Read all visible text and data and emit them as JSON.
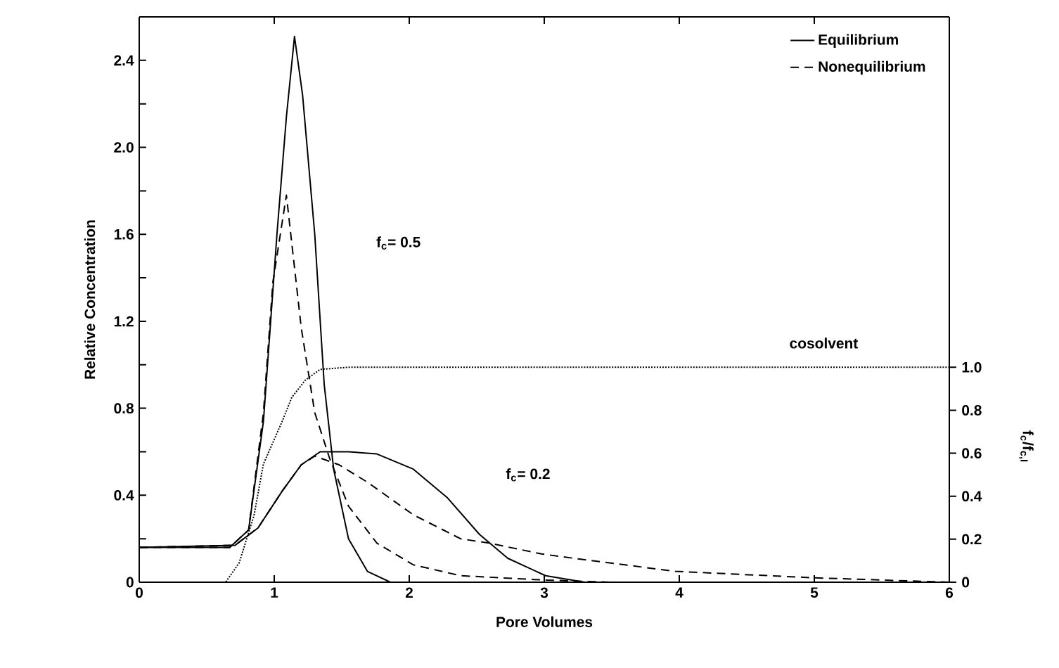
{
  "chart_data": {
    "type": "line",
    "xlabel": "Pore Volumes",
    "ylabel": "Relative Concentration",
    "y2label": "f$_{c}$/f$_{c,I}$",
    "xlim": [
      0,
      6
    ],
    "ylim": [
      0,
      2.6
    ],
    "y2lim": [
      0,
      2.63
    ],
    "xticks": [
      0,
      1,
      2,
      3,
      4,
      5,
      6
    ],
    "yticks": [
      0,
      {
        "value": 0.2,
        "label": null
      },
      0.4,
      {
        "value": 0.6,
        "label": null
      },
      0.8,
      {
        "value": 1.0,
        "label": null
      },
      1.2,
      {
        "value": 1.4,
        "label": null
      },
      1.6,
      {
        "value": 1.8,
        "label": null
      },
      {
        "value": 2.0,
        "label": "2.0"
      },
      {
        "value": 2.2,
        "label": null
      },
      2.4
    ],
    "y2ticks": [
      0,
      0.2,
      0.4,
      0.6,
      0.8,
      {
        "value": 1.0,
        "label": "1.0"
      }
    ],
    "legend": "top right",
    "marker": "none",
    "grid": false,
    "series": [
      {
        "name": "Equilibrium",
        "color": "#000000",
        "line_style": "solid",
        "x": [
          0,
          0.67,
          0.81,
          0.92,
          1.02,
          1.09,
          1.15,
          1.21,
          1.3,
          1.37,
          1.44,
          1.55,
          1.69,
          1.86,
          2.2,
          6
        ],
        "values": [
          0.16,
          0.16,
          0.24,
          0.74,
          1.6,
          2.14,
          2.51,
          2.24,
          1.6,
          0.91,
          0.52,
          0.2,
          0.05,
          0.0,
          0,
          0
        ]
      },
      {
        "name": "Nonequilibrium",
        "color": "#000000",
        "line_style": "dashed",
        "x": [
          0,
          0.67,
          0.81,
          0.92,
          0.99,
          1.09,
          1.2,
          1.3,
          1.41,
          1.55,
          1.76,
          2.03,
          2.38,
          3.0,
          3.5,
          6
        ],
        "values": [
          0.16,
          0.16,
          0.24,
          0.78,
          1.38,
          1.78,
          1.17,
          0.78,
          0.57,
          0.35,
          0.18,
          0.08,
          0.03,
          0.01,
          0,
          0
        ]
      },
      {
        "color": "#000000",
        "line_style": "solid",
        "x": [
          0,
          0.71,
          0.88,
          1.06,
          1.2,
          1.34,
          1.55,
          1.76,
          2.03,
          2.28,
          2.52,
          2.73,
          3.01,
          3.3,
          6
        ],
        "values": [
          0.16,
          0.17,
          0.25,
          0.42,
          0.54,
          0.6,
          0.6,
          0.59,
          0.52,
          0.39,
          0.22,
          0.11,
          0.03,
          0.0,
          0
        ]
      },
      {
        "color": "#000000",
        "line_style": "dashed",
        "x": [
          0,
          0.71,
          0.88,
          1.06,
          1.2,
          1.3,
          1.48,
          1.69,
          2.03,
          2.38,
          2.59,
          2.98,
          3.22,
          3.97,
          5.01,
          6
        ],
        "values": [
          0.16,
          0.17,
          0.25,
          0.42,
          0.54,
          0.58,
          0.54,
          0.46,
          0.31,
          0.2,
          0.18,
          0.13,
          0.11,
          0.05,
          0.02,
          0.0
        ]
      },
      {
        "color": "#000000",
        "line_style": "dotted",
        "axis": "y2",
        "x": [
          0,
          0.64,
          0.74,
          0.85,
          0.92,
          1.06,
          1.13,
          1.23,
          1.34,
          1.55,
          6
        ],
        "values": [
          0,
          0,
          0.09,
          0.31,
          0.55,
          0.75,
          0.86,
          0.94,
          0.99,
          1.0,
          1.0
        ]
      }
    ],
    "annotations": [
      "f$_{c}$= 0.5",
      "f$_{c}$= 0.2",
      "cosolvent"
    ]
  }
}
